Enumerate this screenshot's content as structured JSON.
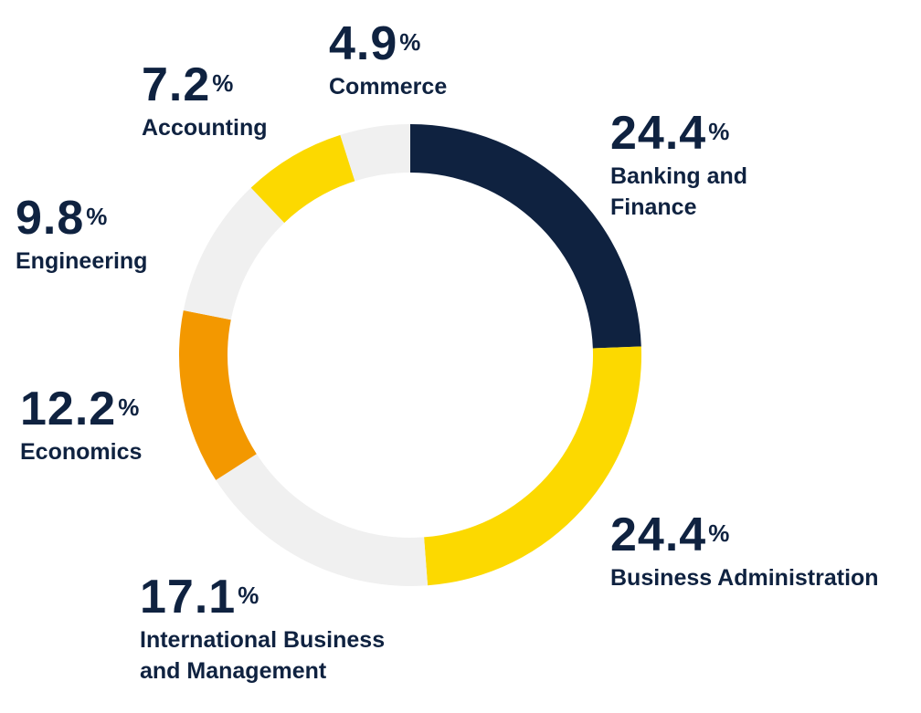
{
  "chart_data": {
    "type": "pie",
    "slices": [
      {
        "label": "Banking and Finance",
        "value": 24.4,
        "display": "24.4",
        "color": "#0f2240"
      },
      {
        "label": "Business Administration",
        "value": 24.4,
        "display": "24.4",
        "color": "#fcd900"
      },
      {
        "label": "International Business and Management",
        "value": 17.1,
        "display": "17.1",
        "color": "#f0f0f0"
      },
      {
        "label": "Economics",
        "value": 12.2,
        "display": "12.2",
        "color": "#f39800"
      },
      {
        "label": "Engineering",
        "value": 9.8,
        "display": "9.8",
        "color": "#f0f0f0"
      },
      {
        "label": "Accounting",
        "value": 7.2,
        "display": "7.2",
        "color": "#fcd900"
      },
      {
        "label": "Commerce",
        "value": 4.9,
        "display": "4.9",
        "color": "#f0f0f0"
      }
    ],
    "unit": "%",
    "style": "donut"
  },
  "labels": {
    "banking": {
      "value": "24.4",
      "unit": "%",
      "name_line1": "Banking and",
      "name_line2": "Finance"
    },
    "business": {
      "value": "24.4",
      "unit": "%",
      "name": "Business Administration"
    },
    "international": {
      "value": "17.1",
      "unit": "%",
      "name_line1": "International Business",
      "name_line2": "and Management"
    },
    "economics": {
      "value": "12.2",
      "unit": "%",
      "name": "Economics"
    },
    "engineering": {
      "value": "9.8",
      "unit": "%",
      "name": "Engineering"
    },
    "accounting": {
      "value": "7.2",
      "unit": "%",
      "name": "Accounting"
    },
    "commerce": {
      "value": "4.9",
      "unit": "%",
      "name": "Commerce"
    }
  }
}
